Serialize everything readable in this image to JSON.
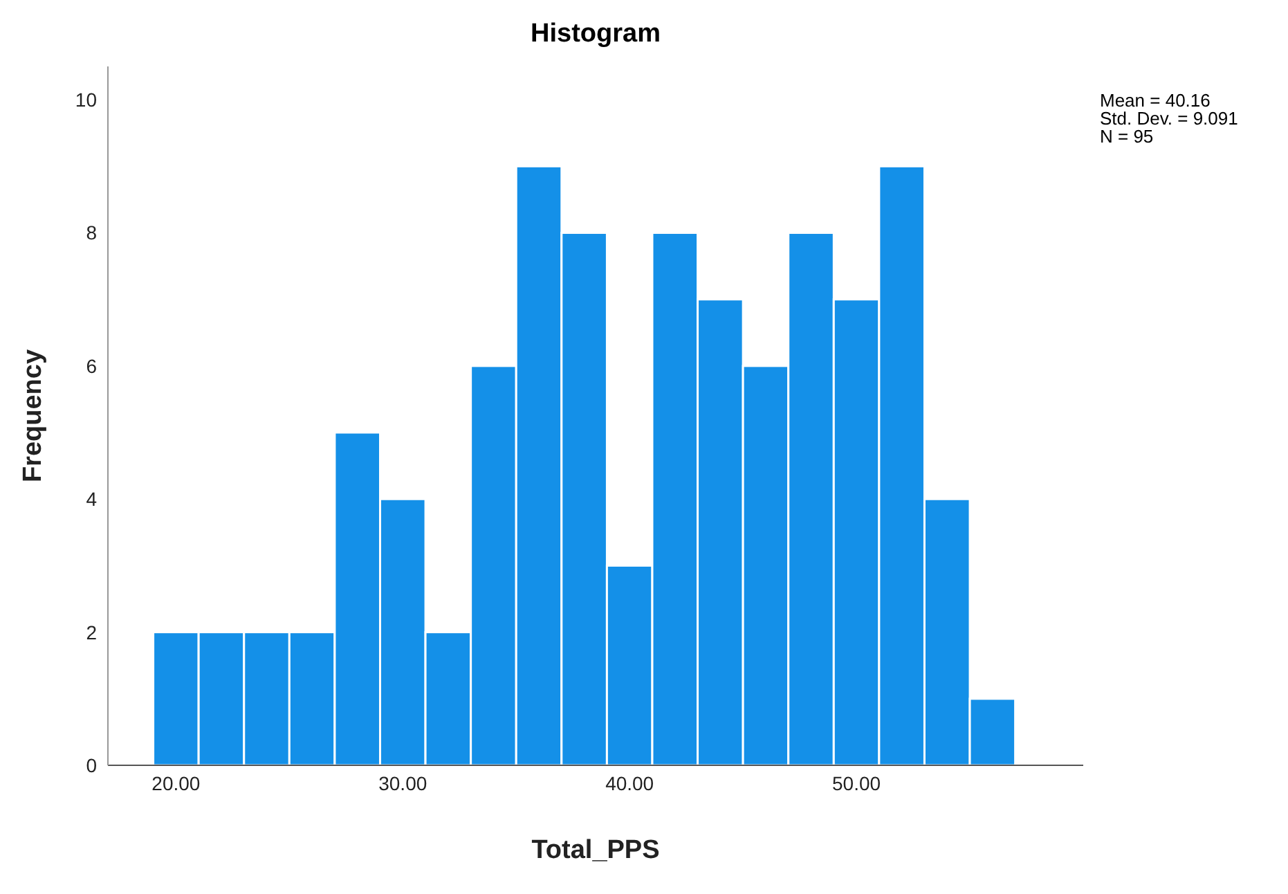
{
  "chart_data": {
    "type": "histogram",
    "title": "Histogram",
    "xlabel": "Total_PPS",
    "ylabel": "Frequency",
    "bins": [
      19,
      21,
      23,
      25,
      27,
      29,
      31,
      33,
      35,
      37,
      39,
      41,
      43,
      45,
      47,
      49,
      51,
      53,
      55,
      57
    ],
    "values": [
      2,
      2,
      2,
      2,
      5,
      4,
      2,
      6,
      9,
      8,
      3,
      8,
      7,
      6,
      8,
      7,
      9,
      4,
      1
    ],
    "color": "#1490e8",
    "xlim": [
      17,
      60
    ],
    "xticks": [
      {
        "value": 20,
        "label": "20.00"
      },
      {
        "value": 30,
        "label": "30.00"
      },
      {
        "value": 40,
        "label": "40.00"
      },
      {
        "value": 50,
        "label": "50.00"
      }
    ],
    "ylim": [
      0,
      10.5
    ],
    "yticks": [
      0,
      2,
      4,
      6,
      8,
      10
    ],
    "annotations": [
      "Mean = 40.16",
      "Std. Dev. = 9.091",
      "N = 95"
    ]
  }
}
